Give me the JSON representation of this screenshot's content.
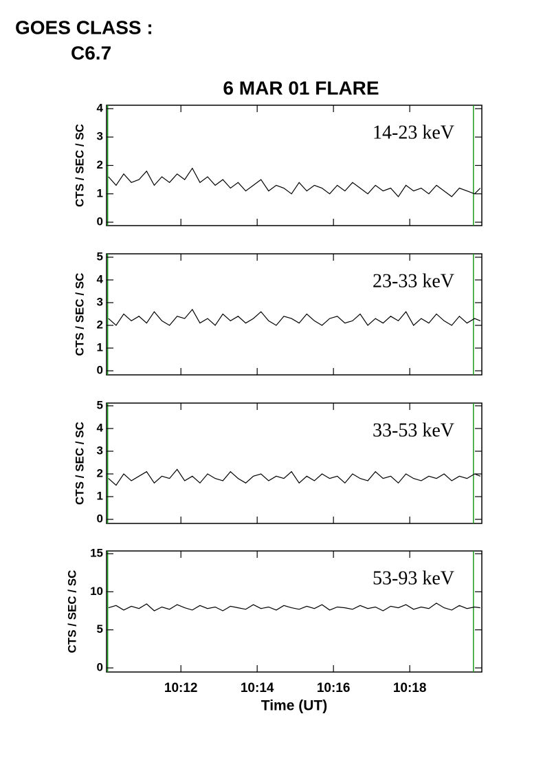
{
  "header": {
    "goes_label": "GOES CLASS :",
    "goes_class": "C6.7"
  },
  "chart_data": [
    {
      "type": "line",
      "title": "6 MAR 01 FLARE",
      "ylabel": "CTS / SEC / SC",
      "annotation": "14-23 keV",
      "xlim": [
        10.05,
        19.89
      ],
      "ylim": [
        -0.12,
        4.12
      ],
      "yticks": [
        0,
        1,
        2,
        3,
        4
      ],
      "markers": [
        10.08,
        19.67
      ],
      "marker_color": "#1a9c1a",
      "x": [
        10.1,
        10.3,
        10.5,
        10.7,
        10.9,
        11.1,
        11.3,
        11.5,
        11.7,
        11.9,
        12.1,
        12.3,
        12.5,
        12.7,
        12.9,
        13.1,
        13.3,
        13.5,
        13.7,
        13.9,
        14.1,
        14.3,
        14.5,
        14.7,
        14.9,
        15.1,
        15.3,
        15.5,
        15.7,
        15.9,
        16.1,
        16.3,
        16.5,
        16.7,
        16.9,
        17.1,
        17.3,
        17.5,
        17.7,
        17.9,
        18.1,
        18.3,
        18.5,
        18.7,
        18.9,
        19.1,
        19.3,
        19.5,
        19.7,
        19.85
      ],
      "series": [
        {
          "color": "#000000",
          "values": [
            1.6,
            1.3,
            1.7,
            1.4,
            1.5,
            1.8,
            1.3,
            1.6,
            1.4,
            1.7,
            1.5,
            1.9,
            1.4,
            1.6,
            1.3,
            1.5,
            1.2,
            1.4,
            1.1,
            1.3,
            1.5,
            1.1,
            1.3,
            1.2,
            1.0,
            1.4,
            1.1,
            1.3,
            1.2,
            1.0,
            1.3,
            1.1,
            1.4,
            1.2,
            1.0,
            1.3,
            1.1,
            1.2,
            0.9,
            1.3,
            1.1,
            1.2,
            1.0,
            1.3,
            1.1,
            0.9,
            1.2,
            1.1,
            1.0,
            1.2
          ]
        }
      ]
    },
    {
      "type": "line",
      "ylabel": "CTS / SEC / SC",
      "annotation": "23-33 keV",
      "xlim": [
        10.05,
        19.89
      ],
      "ylim": [
        -0.18,
        5.15
      ],
      "yticks": [
        0,
        1,
        2,
        3,
        4,
        5
      ],
      "markers": [
        10.08,
        19.67
      ],
      "marker_color": "#1a9c1a",
      "x": [
        10.1,
        10.3,
        10.5,
        10.7,
        10.9,
        11.1,
        11.3,
        11.5,
        11.7,
        11.9,
        12.1,
        12.3,
        12.5,
        12.7,
        12.9,
        13.1,
        13.3,
        13.5,
        13.7,
        13.9,
        14.1,
        14.3,
        14.5,
        14.7,
        14.9,
        15.1,
        15.3,
        15.5,
        15.7,
        15.9,
        16.1,
        16.3,
        16.5,
        16.7,
        16.9,
        17.1,
        17.3,
        17.5,
        17.7,
        17.9,
        18.1,
        18.3,
        18.5,
        18.7,
        18.9,
        19.1,
        19.3,
        19.5,
        19.7,
        19.85
      ],
      "series": [
        {
          "color": "#000000",
          "values": [
            2.3,
            2.0,
            2.5,
            2.2,
            2.4,
            2.1,
            2.6,
            2.2,
            2.0,
            2.4,
            2.3,
            2.7,
            2.1,
            2.3,
            2.0,
            2.5,
            2.2,
            2.4,
            2.1,
            2.3,
            2.6,
            2.2,
            2.0,
            2.4,
            2.3,
            2.1,
            2.5,
            2.2,
            2.0,
            2.3,
            2.4,
            2.1,
            2.2,
            2.5,
            2.0,
            2.3,
            2.1,
            2.4,
            2.2,
            2.6,
            2.0,
            2.3,
            2.1,
            2.5,
            2.2,
            2.0,
            2.4,
            2.1,
            2.3,
            2.2
          ]
        }
      ]
    },
    {
      "type": "line",
      "ylabel": "CTS / SEC / SC",
      "annotation": "33-53 keV",
      "xlim": [
        10.05,
        19.89
      ],
      "ylim": [
        -0.18,
        5.12
      ],
      "yticks": [
        0,
        1,
        2,
        3,
        4,
        5
      ],
      "markers": [
        10.08,
        19.67
      ],
      "marker_color": "#1a9c1a",
      "x": [
        10.1,
        10.3,
        10.5,
        10.7,
        10.9,
        11.1,
        11.3,
        11.5,
        11.7,
        11.9,
        12.1,
        12.3,
        12.5,
        12.7,
        12.9,
        13.1,
        13.3,
        13.5,
        13.7,
        13.9,
        14.1,
        14.3,
        14.5,
        14.7,
        14.9,
        15.1,
        15.3,
        15.5,
        15.7,
        15.9,
        16.1,
        16.3,
        16.5,
        16.7,
        16.9,
        17.1,
        17.3,
        17.5,
        17.7,
        17.9,
        18.1,
        18.3,
        18.5,
        18.7,
        18.9,
        19.1,
        19.3,
        19.5,
        19.7,
        19.85
      ],
      "series": [
        {
          "color": "#000000",
          "values": [
            1.8,
            1.5,
            2.0,
            1.7,
            1.9,
            2.1,
            1.6,
            1.9,
            1.8,
            2.2,
            1.7,
            1.9,
            1.6,
            2.0,
            1.8,
            1.7,
            2.1,
            1.8,
            1.6,
            1.9,
            2.0,
            1.7,
            1.9,
            1.8,
            2.1,
            1.6,
            1.9,
            1.7,
            2.0,
            1.8,
            1.9,
            1.6,
            2.0,
            1.8,
            1.7,
            2.1,
            1.8,
            1.9,
            1.6,
            2.0,
            1.8,
            1.7,
            1.9,
            1.8,
            2.0,
            1.7,
            1.9,
            1.8,
            2.0,
            1.9
          ]
        }
      ]
    },
    {
      "type": "line",
      "ylabel": "CTS / SEC / SC",
      "annotation": "53-93 keV",
      "xlabel": "Time (UT)",
      "xlim": [
        10.05,
        19.89
      ],
      "ylim": [
        -0.54,
        15.36
      ],
      "yticks": [
        0,
        5,
        10,
        15
      ],
      "xticks": [
        {
          "value": 12,
          "label": "10:12"
        },
        {
          "value": 14,
          "label": "10:14"
        },
        {
          "value": 16,
          "label": "10:16"
        },
        {
          "value": 18,
          "label": "10:18"
        }
      ],
      "markers": [
        10.08,
        19.67
      ],
      "marker_color": "#1a9c1a",
      "x": [
        10.1,
        10.3,
        10.5,
        10.7,
        10.9,
        11.1,
        11.3,
        11.5,
        11.7,
        11.9,
        12.1,
        12.3,
        12.5,
        12.7,
        12.9,
        13.1,
        13.3,
        13.5,
        13.7,
        13.9,
        14.1,
        14.3,
        14.5,
        14.7,
        14.9,
        15.1,
        15.3,
        15.5,
        15.7,
        15.9,
        16.1,
        16.3,
        16.5,
        16.7,
        16.9,
        17.1,
        17.3,
        17.5,
        17.7,
        17.9,
        18.1,
        18.3,
        18.5,
        18.7,
        18.9,
        19.1,
        19.3,
        19.5,
        19.7,
        19.85
      ],
      "series": [
        {
          "color": "#000000",
          "values": [
            7.9,
            8.2,
            7.6,
            8.1,
            7.8,
            8.4,
            7.5,
            8.0,
            7.7,
            8.3,
            7.9,
            7.6,
            8.2,
            7.8,
            8.0,
            7.5,
            8.1,
            7.9,
            7.7,
            8.3,
            7.8,
            8.0,
            7.6,
            8.2,
            7.9,
            7.7,
            8.1,
            7.8,
            8.3,
            7.6,
            8.0,
            7.9,
            7.7,
            8.2,
            7.8,
            8.0,
            7.5,
            8.1,
            7.9,
            8.3,
            7.7,
            8.0,
            7.8,
            8.5,
            7.9,
            7.6,
            8.2,
            7.8,
            8.0,
            7.9
          ]
        }
      ]
    }
  ]
}
